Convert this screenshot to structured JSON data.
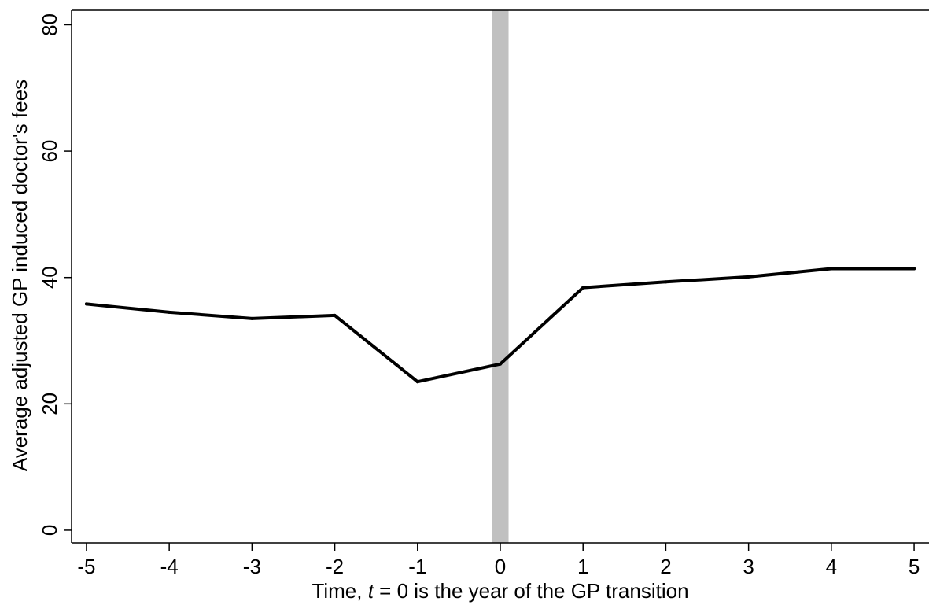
{
  "chart_data": {
    "type": "line",
    "title": "",
    "xlabel_parts": [
      "Time, ",
      "t",
      " = 0 is the year of the GP transition"
    ],
    "ylabel": "Average adjusted GP induced doctor's fees",
    "x": [
      -5,
      -4,
      -3,
      -2,
      -1,
      0,
      1,
      2,
      3,
      4,
      5
    ],
    "series": [
      {
        "values": [
          35.8,
          34.5,
          33.5,
          34.0,
          23.5,
          26.3,
          38.4,
          39.3,
          40.1,
          41.4,
          41.4
        ]
      }
    ],
    "xticks": [
      "-5",
      "-4",
      "-3",
      "-2",
      "-1",
      "0",
      "1",
      "2",
      "3",
      "4",
      "5"
    ],
    "yticks": [
      "0",
      "20",
      "40",
      "60",
      "80"
    ],
    "xlim": [
      -5.18,
      5.18
    ],
    "ylim": [
      -2,
      82.3
    ],
    "highlight_band": {
      "x_from": -0.1,
      "x_to": 0.1,
      "color": "#c0c0c0"
    },
    "line_color": "#000000",
    "grid": false,
    "legend": "none"
  }
}
